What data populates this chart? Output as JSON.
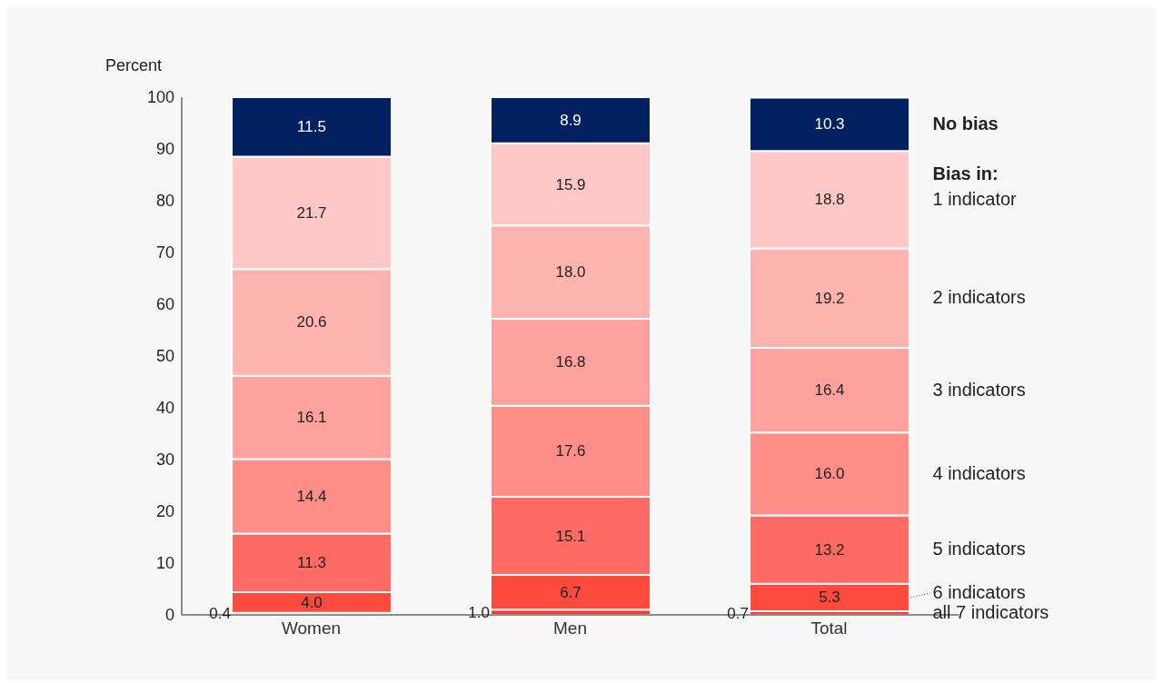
{
  "chart_data": {
    "type": "bar",
    "stacked": true,
    "ylabel": "Percent",
    "legend_title": "Bias in:",
    "categories": [
      "Women",
      "Men",
      "Total"
    ],
    "series": [
      {
        "name": "all 7 indicators",
        "color": "#ff3b30",
        "values": [
          0.4,
          1.0,
          0.7
        ],
        "value_labels": [
          "0.4",
          "1.0",
          "0.7"
        ]
      },
      {
        "name": "6 indicators",
        "color": "#ff4b3e",
        "values": [
          4.0,
          6.7,
          5.3
        ],
        "value_labels": [
          "4.0",
          "6.7",
          "5.3"
        ]
      },
      {
        "name": "5 indicators",
        "color": "#ff6a62",
        "values": [
          11.3,
          15.1,
          13.2
        ],
        "value_labels": [
          "11.3",
          "15.1",
          "13.2"
        ]
      },
      {
        "name": "4 indicators",
        "color": "#ff8e88",
        "values": [
          14.4,
          17.6,
          16.0
        ],
        "value_labels": [
          "14.4",
          "17.6",
          "16.0"
        ]
      },
      {
        "name": "3 indicators",
        "color": "#ffa19c",
        "values": [
          16.1,
          16.8,
          16.4
        ],
        "value_labels": [
          "16.1",
          "16.8",
          "16.4"
        ]
      },
      {
        "name": "2 indicators",
        "color": "#ffb4b0",
        "values": [
          20.6,
          18.0,
          19.2
        ],
        "value_labels": [
          "20.6",
          "18.0",
          "19.2"
        ]
      },
      {
        "name": "1 indicator",
        "color": "#ffc8c6",
        "values": [
          21.7,
          15.9,
          18.8
        ],
        "value_labels": [
          "21.7",
          "15.9",
          "18.8"
        ]
      },
      {
        "name": "No bias",
        "color": "#002060",
        "values": [
          11.5,
          8.9,
          10.3
        ],
        "value_labels": [
          "11.5",
          "8.9",
          "10.3"
        ]
      }
    ],
    "ylim": [
      0,
      100
    ],
    "yticks": [
      0,
      10,
      20,
      30,
      40,
      50,
      60,
      70,
      80,
      90,
      100
    ],
    "legend": "right"
  }
}
